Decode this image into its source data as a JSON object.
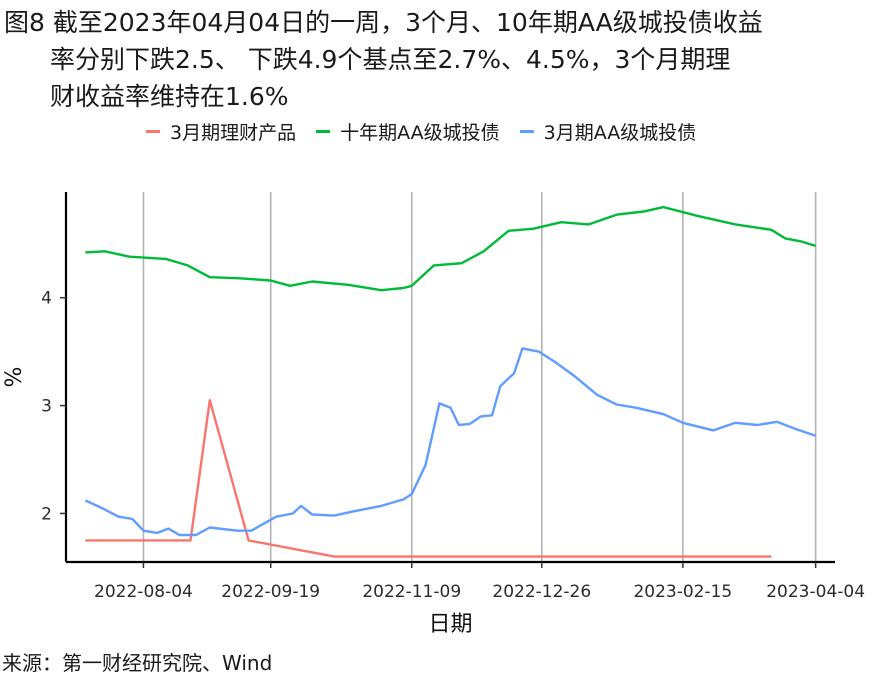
{
  "title": {
    "line1": "图8  截至2023年04月04日的一周，3个月、10年期AA级城投债收益",
    "line2": "率分别下跌2.5、 下跌4.9个基点至2.7%、4.5%，3个月期理",
    "line3": "财收益率维持在1.6%"
  },
  "source": "来源：第一财经研究院、Wind",
  "chart_data": {
    "type": "line",
    "xlabel": "日期",
    "ylabel": "%",
    "x_start": "2022-07-14",
    "x_end": "2023-04-04",
    "xlim": [
      "2022-07-07",
      "2023-04-11"
    ],
    "ylim": [
      1.55,
      4.98
    ],
    "x_ticks": [
      "2022-08-04",
      "2022-09-19",
      "2022-11-09",
      "2022-12-26",
      "2023-02-15",
      "2023-04-04"
    ],
    "y_ticks": [
      2,
      3,
      4
    ],
    "grid": {
      "vertical": true,
      "horizontal": false
    },
    "legend_position": "top",
    "series": [
      {
        "name": "3月期理财产品",
        "color": "#F8766D",
        "points": [
          [
            "2022-07-14",
            1.75
          ],
          [
            "2022-08-21",
            1.75
          ],
          [
            "2022-08-28",
            3.05
          ],
          [
            "2022-09-11",
            1.75
          ],
          [
            "2022-10-12",
            1.6
          ],
          [
            "2023-03-19",
            1.6
          ]
        ]
      },
      {
        "name": "十年期AA级城投债",
        "color": "#00BA38",
        "points": [
          [
            "2022-07-14",
            4.42
          ],
          [
            "2022-07-21",
            4.43
          ],
          [
            "2022-07-30",
            4.38
          ],
          [
            "2022-08-12",
            4.36
          ],
          [
            "2022-08-20",
            4.3
          ],
          [
            "2022-08-28",
            4.19
          ],
          [
            "2022-09-08",
            4.18
          ],
          [
            "2022-09-19",
            4.16
          ],
          [
            "2022-09-26",
            4.11
          ],
          [
            "2022-10-04",
            4.15
          ],
          [
            "2022-10-17",
            4.12
          ],
          [
            "2022-10-29",
            4.07
          ],
          [
            "2022-11-06",
            4.09
          ],
          [
            "2022-11-09",
            4.11
          ],
          [
            "2022-11-17",
            4.3
          ],
          [
            "2022-11-27",
            4.32
          ],
          [
            "2022-12-05",
            4.43
          ],
          [
            "2022-12-14",
            4.62
          ],
          [
            "2022-12-23",
            4.64
          ],
          [
            "2023-01-02",
            4.7
          ],
          [
            "2023-01-12",
            4.68
          ],
          [
            "2023-01-22",
            4.77
          ],
          [
            "2023-02-01",
            4.8
          ],
          [
            "2023-02-08",
            4.84
          ],
          [
            "2023-02-20",
            4.76
          ],
          [
            "2023-03-06",
            4.68
          ],
          [
            "2023-03-19",
            4.63
          ],
          [
            "2023-03-24",
            4.55
          ],
          [
            "2023-03-30",
            4.52
          ],
          [
            "2023-04-04",
            4.48
          ]
        ]
      },
      {
        "name": "3月期AA级城投债",
        "color": "#619CFF",
        "points": [
          [
            "2022-07-14",
            2.12
          ],
          [
            "2022-07-20",
            2.05
          ],
          [
            "2022-07-26",
            1.97
          ],
          [
            "2022-07-31",
            1.95
          ],
          [
            "2022-08-04",
            1.84
          ],
          [
            "2022-08-09",
            1.82
          ],
          [
            "2022-08-13",
            1.86
          ],
          [
            "2022-08-17",
            1.8
          ],
          [
            "2022-08-23",
            1.8
          ],
          [
            "2022-08-28",
            1.87
          ],
          [
            "2022-09-07",
            1.84
          ],
          [
            "2022-09-12",
            1.84
          ],
          [
            "2022-09-21",
            1.97
          ],
          [
            "2022-09-27",
            2.0
          ],
          [
            "2022-09-30",
            2.07
          ],
          [
            "2022-10-04",
            1.99
          ],
          [
            "2022-10-12",
            1.98
          ],
          [
            "2022-10-19",
            2.02
          ],
          [
            "2022-10-29",
            2.07
          ],
          [
            "2022-11-06",
            2.13
          ],
          [
            "2022-11-09",
            2.18
          ],
          [
            "2022-11-14",
            2.45
          ],
          [
            "2022-11-19",
            3.02
          ],
          [
            "2022-11-23",
            2.98
          ],
          [
            "2022-11-26",
            2.82
          ],
          [
            "2022-11-30",
            2.83
          ],
          [
            "2022-12-04",
            2.9
          ],
          [
            "2022-12-08",
            2.91
          ],
          [
            "2022-12-11",
            3.18
          ],
          [
            "2022-12-16",
            3.3
          ],
          [
            "2022-12-19",
            3.53
          ],
          [
            "2022-12-25",
            3.5
          ],
          [
            "2022-12-31",
            3.4
          ],
          [
            "2023-01-07",
            3.27
          ],
          [
            "2023-01-15",
            3.1
          ],
          [
            "2023-01-22",
            3.01
          ],
          [
            "2023-01-29",
            2.98
          ],
          [
            "2023-02-08",
            2.92
          ],
          [
            "2023-02-15",
            2.84
          ],
          [
            "2023-02-26",
            2.77
          ],
          [
            "2023-03-06",
            2.84
          ],
          [
            "2023-03-14",
            2.82
          ],
          [
            "2023-03-21",
            2.85
          ],
          [
            "2023-03-28",
            2.78
          ],
          [
            "2023-04-04",
            2.72
          ]
        ]
      }
    ]
  }
}
